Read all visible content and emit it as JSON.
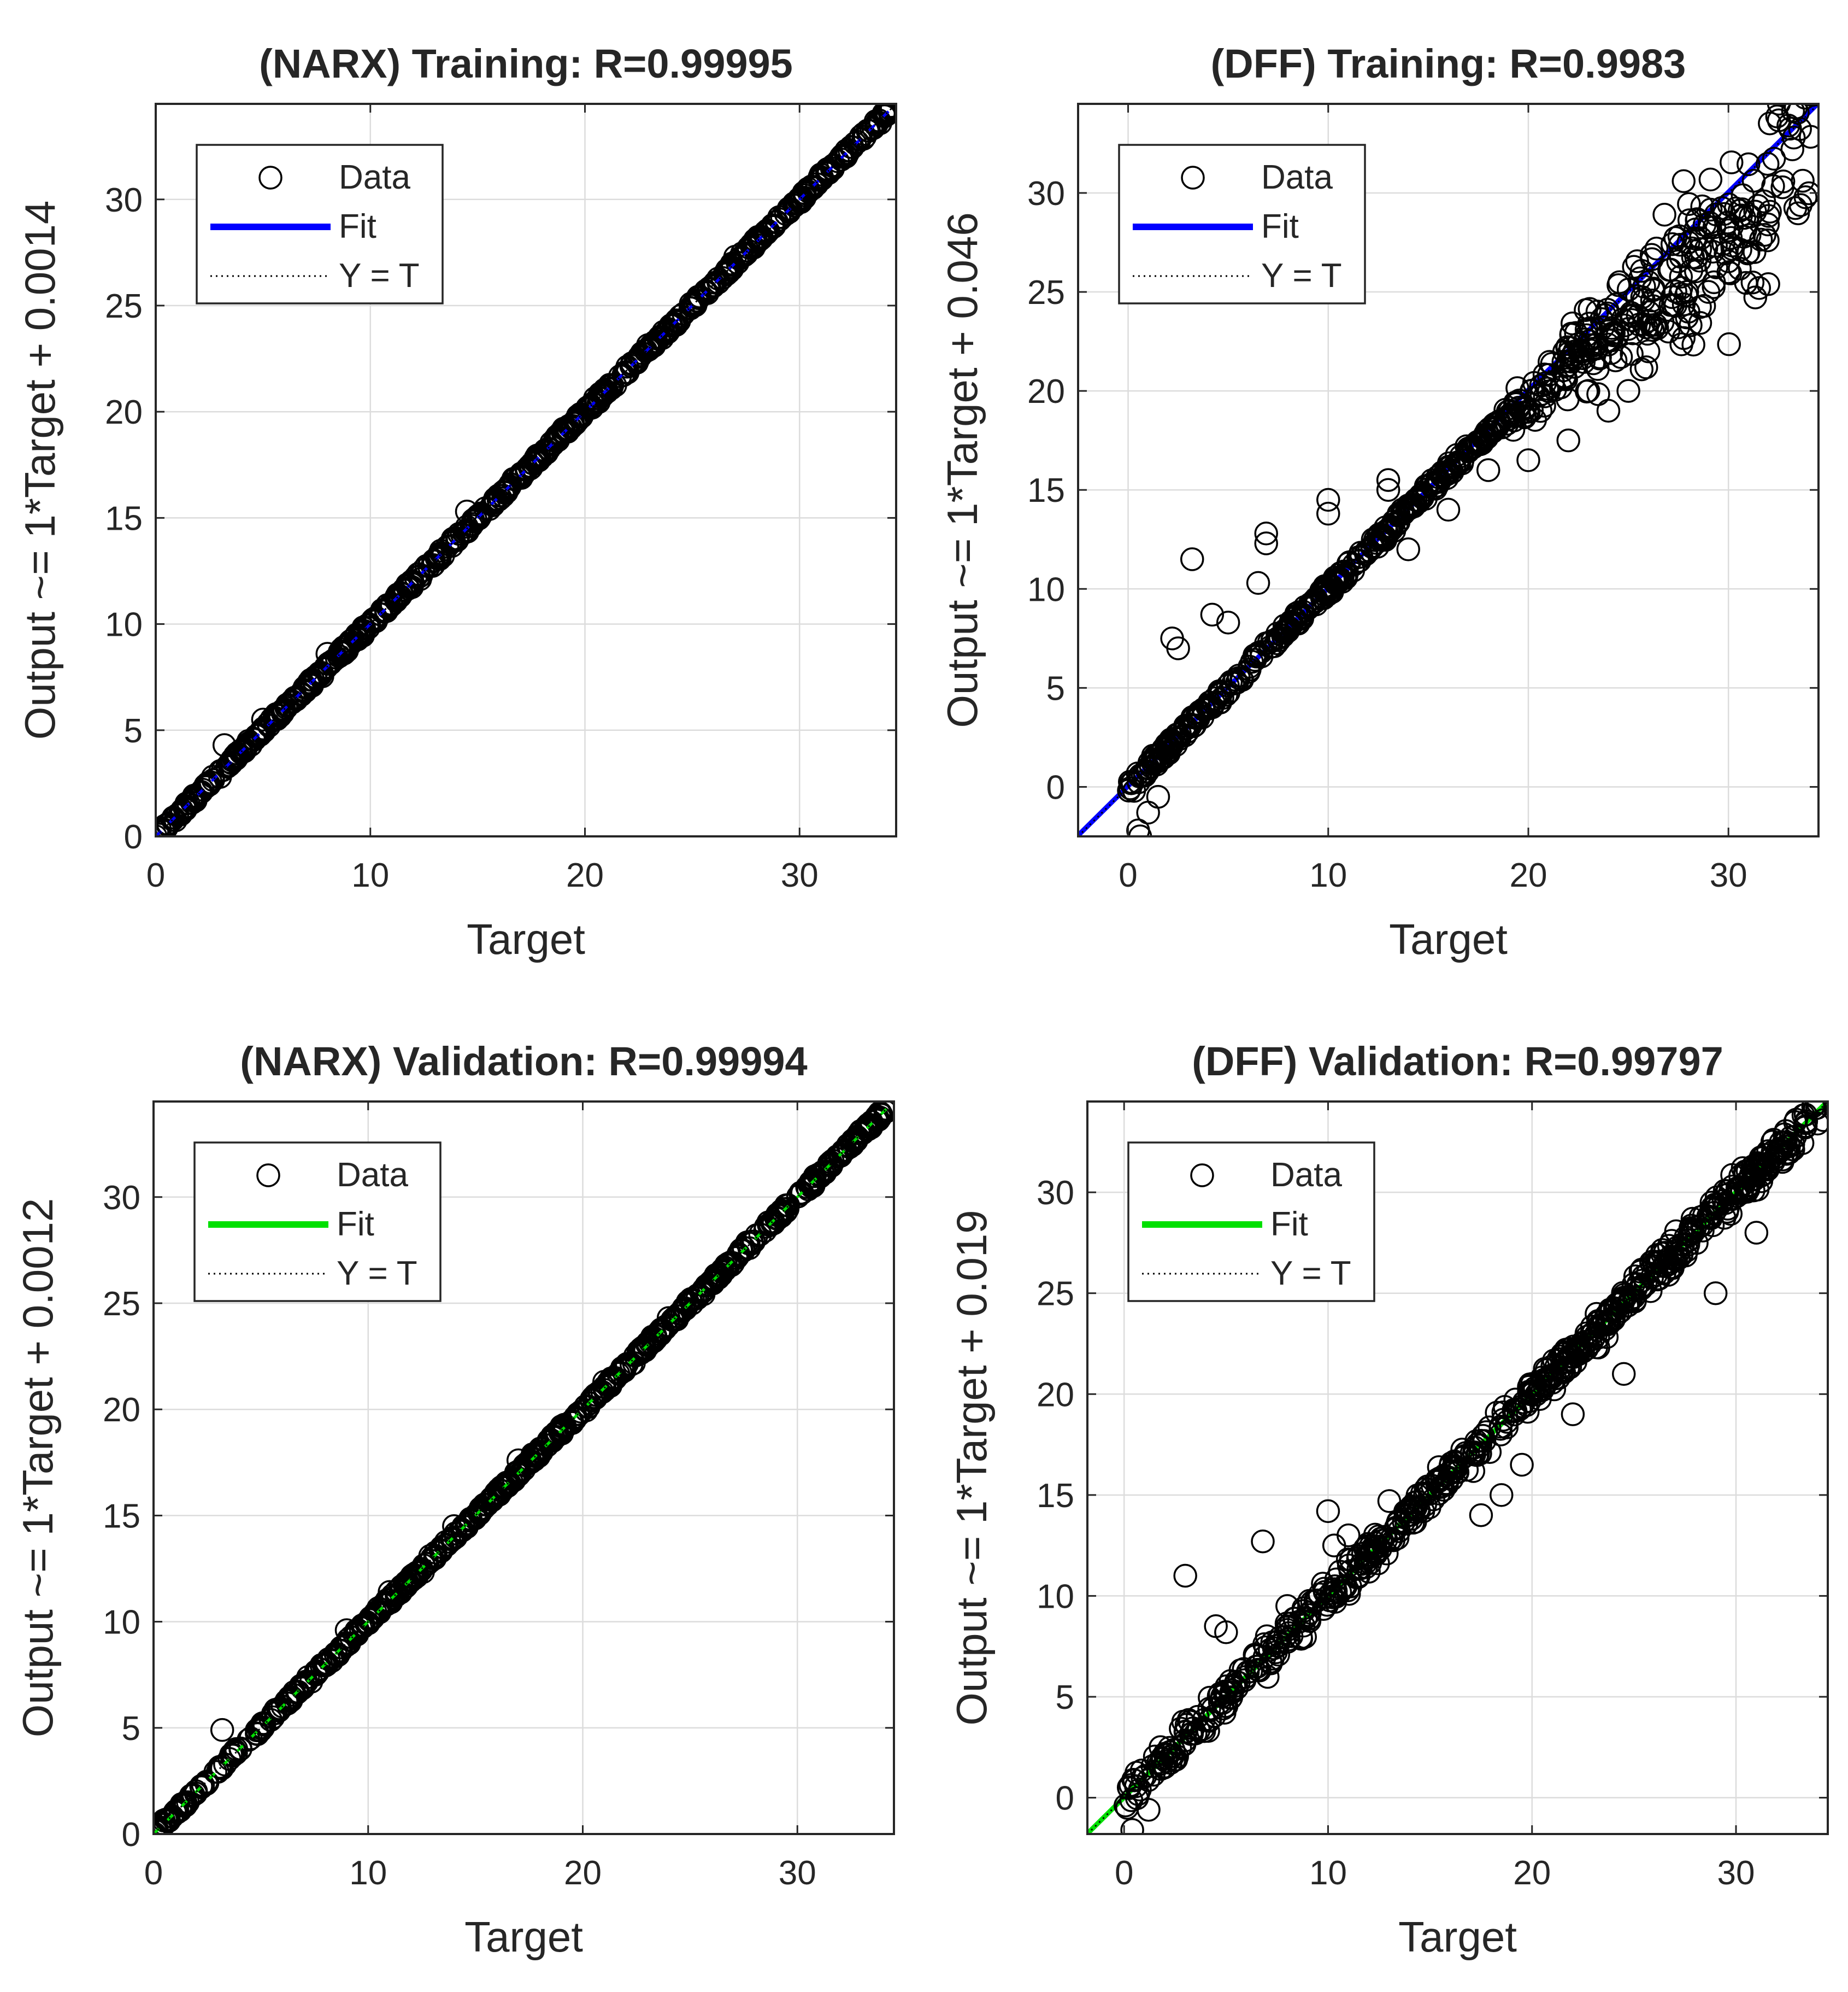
{
  "colors": {
    "background": "#ffffff",
    "axis": "#262626",
    "grid": "#dcdcdc",
    "marker": "#000000",
    "fit_training": "#0000ff",
    "fit_validation": "#00e000"
  },
  "chart_data": [
    {
      "type": "scatter",
      "id": "narx-training",
      "title": "(NARX) Training: R=0.99995",
      "xlabel": "Target",
      "ylabel": "Output ~= 1*Target + 0.0014",
      "xlim": [
        0,
        34.5
      ],
      "ylim": [
        0,
        34.5
      ],
      "xticks": [
        0,
        10,
        20,
        30
      ],
      "yticks": [
        0,
        5,
        10,
        15,
        20,
        25,
        30
      ],
      "grid": true,
      "legend": {
        "location": "top-left",
        "entries": [
          "Data",
          "Fit",
          "Y = T"
        ]
      },
      "fit": {
        "slope": 1,
        "intercept": 0.0014,
        "color": "#0000ff",
        "style": "dashed-over-data"
      },
      "identity_line": true,
      "data_points": [
        [
          0,
          0
        ],
        [
          0.2,
          0.1
        ],
        [
          0.5,
          0.4
        ],
        [
          1,
          1
        ],
        [
          3.2,
          4.3
        ],
        [
          5,
          5.5
        ],
        [
          3,
          2.8
        ],
        [
          8,
          8.6
        ],
        [
          14.5,
          15.3
        ],
        [
          19,
          19.2
        ],
        [
          27,
          27.3
        ]
      ],
      "data_range": [
        0,
        34.3
      ],
      "data_spread": 0.12
    },
    {
      "type": "scatter",
      "id": "dff-training",
      "title": "(DFF) Training: R=0.9983",
      "xlabel": "Target",
      "ylabel": "Output ~= 1*Target + 0.046",
      "xlim": [
        -2.5,
        34.5
      ],
      "ylim": [
        -2.5,
        34.5
      ],
      "xticks": [
        0,
        10,
        20,
        30
      ],
      "yticks": [
        0,
        5,
        10,
        15,
        20,
        25,
        30
      ],
      "grid": true,
      "legend": {
        "location": "top-left",
        "entries": [
          "Data",
          "Fit",
          "Y = T"
        ]
      },
      "fit": {
        "slope": 1,
        "intercept": 0.046,
        "color": "#0000ff",
        "style": "solid"
      },
      "identity_line": true,
      "data_points": [
        [
          3.2,
          11.5
        ],
        [
          2.2,
          7.5
        ],
        [
          2.5,
          7
        ],
        [
          4.2,
          8.7
        ],
        [
          5,
          8.3
        ],
        [
          6.5,
          10.3
        ],
        [
          6.9,
          12.8
        ],
        [
          6.9,
          12.3
        ],
        [
          10,
          14.5
        ],
        [
          10,
          13.8
        ],
        [
          13,
          15.5
        ],
        [
          13,
          15
        ],
        [
          0.5,
          -2.2
        ],
        [
          0.6,
          -2.5
        ],
        [
          1,
          -1.3
        ],
        [
          0.3,
          -0.2
        ],
        [
          1.5,
          -0.5
        ],
        [
          20,
          16.5
        ],
        [
          22,
          17.5
        ],
        [
          24,
          19
        ],
        [
          25,
          20
        ],
        [
          26,
          22
        ],
        [
          27,
          23
        ],
        [
          28,
          24
        ],
        [
          29,
          25
        ],
        [
          30,
          26
        ],
        [
          31,
          27
        ],
        [
          23,
          20
        ],
        [
          26,
          25.5
        ],
        [
          28,
          27.5
        ],
        [
          14,
          12
        ],
        [
          16,
          14
        ],
        [
          18,
          16
        ]
      ],
      "data_range": [
        0,
        34.3
      ],
      "data_spread": 1.4
    },
    {
      "type": "scatter",
      "id": "narx-validation",
      "title": "(NARX) Validation: R=0.99994",
      "xlabel": "Target",
      "ylabel": "Output ~= 1*Target + 0.0012",
      "xlim": [
        0,
        34.5
      ],
      "ylim": [
        0,
        34.5
      ],
      "xticks": [
        0,
        10,
        20,
        30
      ],
      "yticks": [
        0,
        5,
        10,
        15,
        20,
        25,
        30
      ],
      "grid": true,
      "legend": {
        "location": "top-left",
        "entries": [
          "Data",
          "Fit",
          "Y = T"
        ]
      },
      "fit": {
        "slope": 1,
        "intercept": 0.0012,
        "color": "#00e000",
        "style": "dashed-over-data"
      },
      "identity_line": true,
      "data_points": [
        [
          0,
          0
        ],
        [
          0.3,
          0.2
        ],
        [
          3.2,
          4.9
        ],
        [
          9,
          9.6
        ],
        [
          11,
          11.4
        ],
        [
          14,
          14.5
        ],
        [
          17,
          17.6
        ],
        [
          19,
          19.2
        ],
        [
          21,
          21.3
        ],
        [
          24,
          24.3
        ]
      ],
      "data_range": [
        0,
        34.3
      ],
      "data_spread": 0.12
    },
    {
      "type": "scatter",
      "id": "dff-validation",
      "title": "(DFF) Validation: R=0.99797",
      "xlabel": "Target",
      "ylabel": "Output ~= 1*Target + 0.019",
      "xlim": [
        -1.8,
        34.5
      ],
      "ylim": [
        -1.8,
        34.5
      ],
      "xticks": [
        0,
        10,
        20,
        30
      ],
      "yticks": [
        0,
        5,
        10,
        15,
        20,
        25,
        30
      ],
      "grid": true,
      "legend": {
        "location": "top-left",
        "entries": [
          "Data",
          "Fit",
          "Y = T"
        ]
      },
      "fit": {
        "slope": 1,
        "intercept": 0.019,
        "color": "#00e000",
        "style": "solid"
      },
      "identity_line": true,
      "data_points": [
        [
          3,
          11
        ],
        [
          4.5,
          8.5
        ],
        [
          5,
          8.2
        ],
        [
          6.8,
          12.7
        ],
        [
          10,
          14.2
        ],
        [
          10.3,
          12.5
        ],
        [
          11,
          13
        ],
        [
          11.5,
          11
        ],
        [
          12,
          11.2
        ],
        [
          13,
          14.7
        ],
        [
          17.5,
          14
        ],
        [
          18.5,
          15
        ],
        [
          19.5,
          16.5
        ],
        [
          22,
          19
        ],
        [
          24.5,
          21
        ],
        [
          29,
          25
        ],
        [
          31,
          28
        ],
        [
          0.4,
          -1.6
        ],
        [
          1.2,
          -0.6
        ],
        [
          7,
          8
        ],
        [
          8,
          9.5
        ],
        [
          20,
          20.5
        ],
        [
          26,
          26.5
        ]
      ],
      "data_range": [
        0,
        34.3
      ],
      "data_spread": 0.55
    }
  ]
}
